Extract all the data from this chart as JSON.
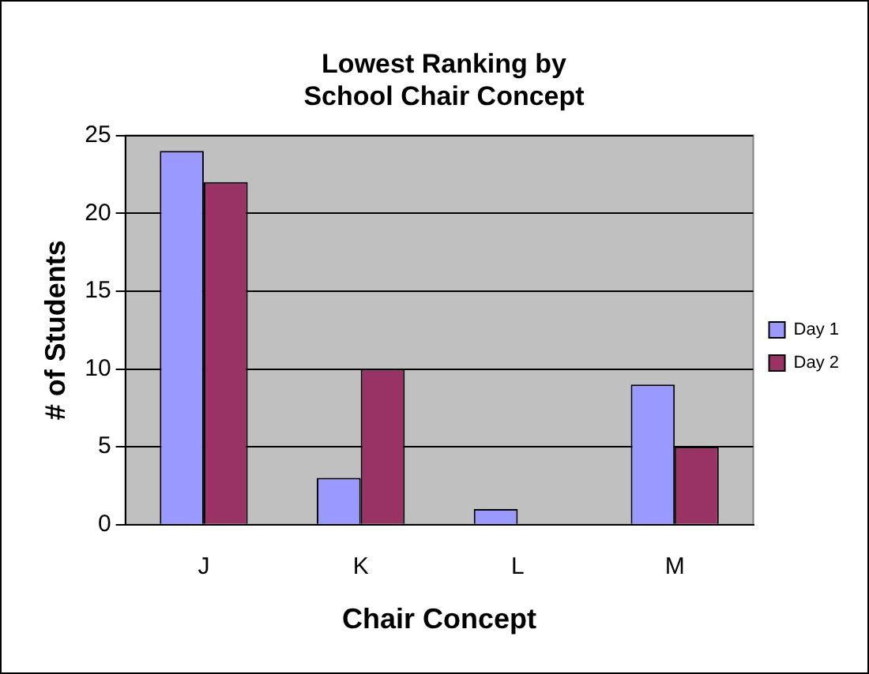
{
  "chart_data": {
    "type": "bar",
    "title": "Lowest Ranking by\nSchool Chair Concept",
    "xlabel": "Chair Concept",
    "ylabel": "# of Students",
    "categories": [
      "J",
      "K",
      "L",
      "M"
    ],
    "series": [
      {
        "name": "Day 1",
        "color": "#9999ff",
        "values": [
          24,
          3,
          1,
          9
        ]
      },
      {
        "name": "Day 2",
        "color": "#993366",
        "values": [
          22,
          10,
          0,
          5
        ]
      }
    ],
    "ylim": [
      0,
      25
    ],
    "yticks": [
      0,
      5,
      10,
      15,
      20,
      25
    ],
    "grid": "y",
    "legend": "right"
  }
}
